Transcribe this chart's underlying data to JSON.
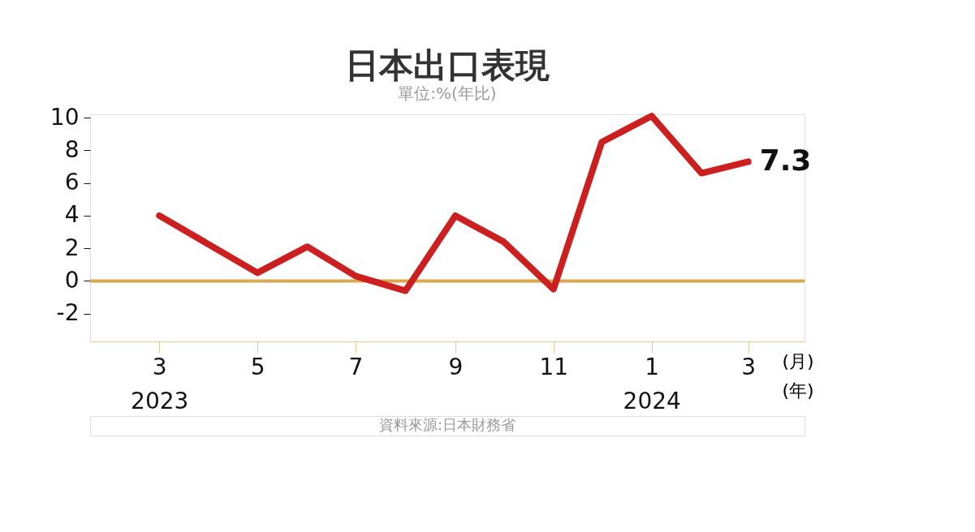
{
  "chart_data": {
    "type": "line",
    "title": "日本出口表現",
    "subtitle": "單位:%(年比)",
    "x": [
      "2023-03",
      "2023-05",
      "2023-06",
      "2023-07",
      "2023-08",
      "2023-09",
      "2023-10",
      "2023-11",
      "2023-12",
      "2024-01",
      "2024-02",
      "2024-03"
    ],
    "series": [
      {
        "color": "#cc1f1f",
        "values": [
          4.0,
          0.5,
          2.1,
          0.3,
          -0.6,
          4.0,
          2.4,
          -0.5,
          8.5,
          10.1,
          6.6,
          7.3
        ],
        "value_labels": [
          null,
          null,
          null,
          null,
          null,
          null,
          null,
          null,
          null,
          null,
          null,
          "7.3"
        ]
      }
    ],
    "xlim": [
      "2023-01-17",
      "2024-04-05"
    ],
    "xticks": [
      {
        "value": "2023-03",
        "label": "3\n2023"
      },
      {
        "value": "2023-05",
        "label": "5"
      },
      {
        "value": "2023-07",
        "label": "7"
      },
      {
        "value": "2023-09",
        "label": "9"
      },
      {
        "value": "2023-11",
        "label": "11"
      },
      {
        "value": "2024-01",
        "label": "1\n2024"
      },
      {
        "value": "2024-03",
        "label": "3"
      }
    ],
    "xlabel": "(月)\n(年)",
    "ylim": [
      -3.7,
      10.2
    ],
    "yticks": [
      -2,
      0,
      2,
      4,
      6,
      8,
      10
    ],
    "ref_lines": [
      {
        "axis": "y",
        "value": 0,
        "color": "#d9a84e"
      }
    ],
    "grid": false,
    "marker": "none",
    "line_style": "solid",
    "annotations": [
      "資料來源:日本財務省"
    ]
  }
}
